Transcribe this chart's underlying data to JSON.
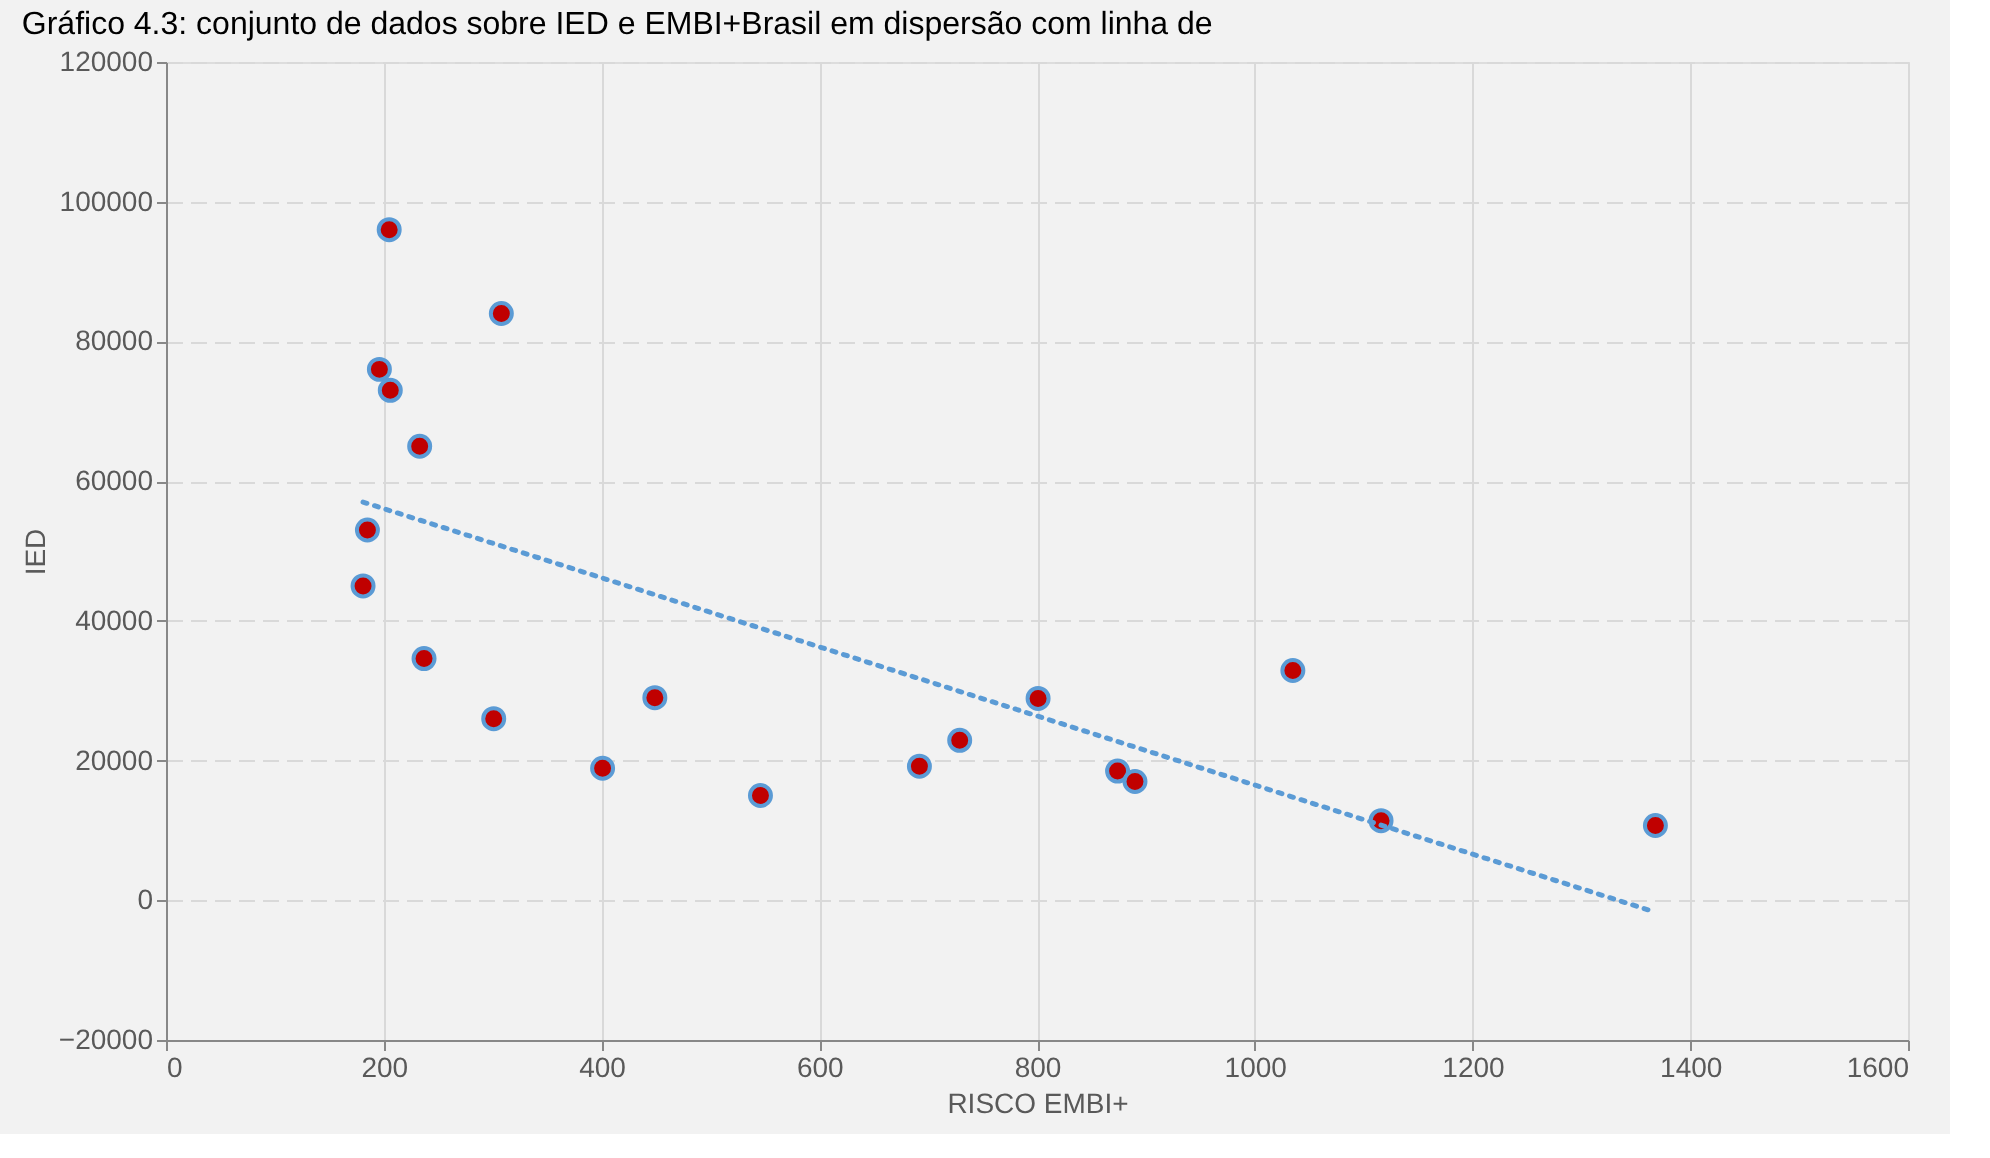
{
  "chart_data": {
    "type": "scatter",
    "title": "Gráfico 4.3: conjunto de dados sobre IED e EMBI+Brasil em dispersão com linha de",
    "xlabel": "RISCO EMBI+",
    "ylabel": "IED",
    "xlim": [
      0,
      1600
    ],
    "xticks": [
      0,
      200,
      400,
      600,
      800,
      1000,
      1200,
      1400,
      1600
    ],
    "ylim": [
      -20000,
      120000
    ],
    "yticks": [
      -20000,
      0,
      20000,
      40000,
      60000,
      80000,
      100000,
      120000
    ],
    "grid": true,
    "series": [
      {
        "marker": "circle",
        "color": "#c00000",
        "x": [
          205,
          308,
          196,
          206,
          233,
          185,
          181,
          237,
          301,
          401,
          449,
          546,
          692,
          729,
          801,
          874,
          890,
          1035,
          1116,
          1368
        ],
        "values": [
          96000,
          84000,
          76000,
          73000,
          65000,
          53000,
          45000,
          34600,
          26000,
          18900,
          29000,
          15000,
          19200,
          22900,
          28900,
          18500,
          17000,
          32900,
          11400,
          10700
        ]
      },
      {
        "type": "line",
        "color": "#5b9bd5",
        "line_style": "dotted",
        "x": [
          181,
          1368
        ],
        "values": [
          57000,
          -1700
        ]
      }
    ]
  }
}
